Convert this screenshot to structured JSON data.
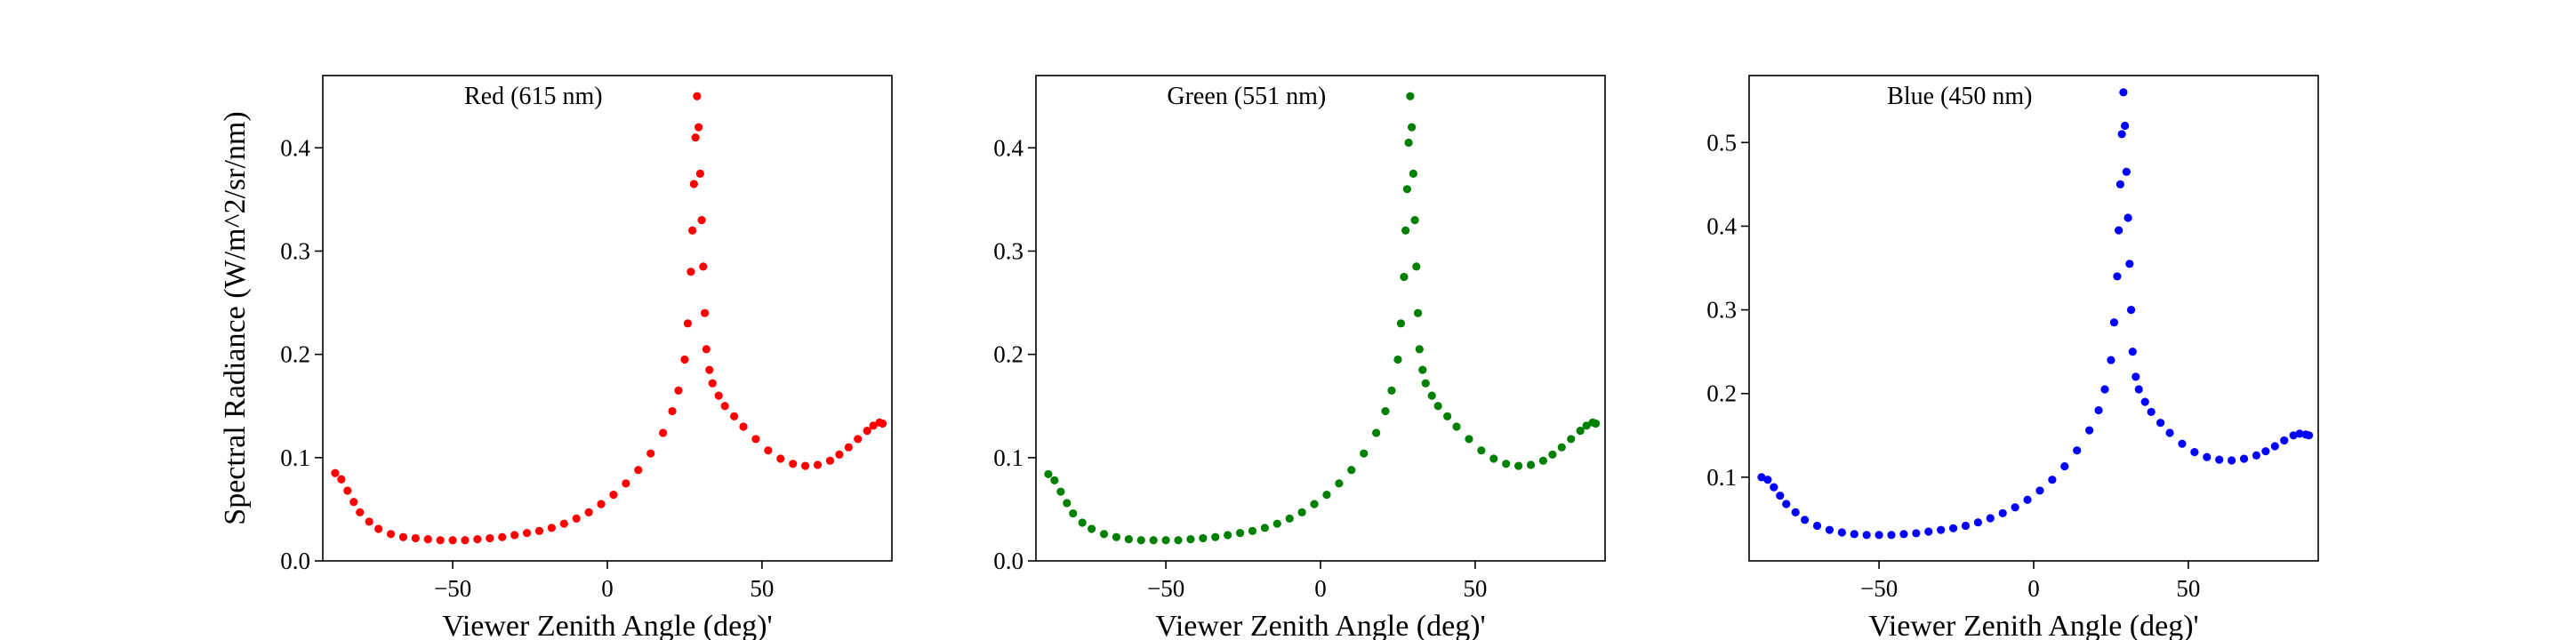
{
  "figure": {
    "ylabel": "Spectral Radiance (W/m^2/sr/nm)"
  },
  "chart_data": [
    {
      "type": "scatter",
      "title": "Red (615 nm)",
      "xlabel": "Viewer Zenith Angle (deg)'",
      "ylabel": "Spectral Radiance (W/m^2/sr/nm)",
      "color": "#ff0000",
      "xlim": [
        -92,
        92
      ],
      "ylim": [
        0.0,
        0.47
      ],
      "xticks": [
        -50,
        0,
        50
      ],
      "yticks": [
        0.0,
        0.1,
        0.2,
        0.3,
        0.4
      ],
      "ytick_labels": [
        "0.0",
        "0.1",
        "0.2",
        "0.3",
        "0.4"
      ],
      "grid": false,
      "series": [
        {
          "x": [
            -88,
            -86,
            -84,
            -82,
            -80,
            -77,
            -74,
            -70,
            -66,
            -62,
            -58,
            -54,
            -50,
            -46,
            -42,
            -38,
            -34,
            -30,
            -26,
            -22,
            -18,
            -14,
            -10,
            -6,
            -2,
            2,
            6,
            10,
            14,
            18,
            21,
            23,
            25,
            26,
            27,
            27.5,
            28,
            28.5,
            29,
            29.5,
            30,
            30.5,
            31,
            31.5,
            32,
            33,
            34,
            36,
            38,
            41,
            44,
            48,
            52,
            56,
            60,
            64,
            68,
            72,
            75,
            78,
            81,
            84,
            86,
            88,
            89
          ],
          "y": [
            0.085,
            0.079,
            0.068,
            0.057,
            0.047,
            0.038,
            0.031,
            0.026,
            0.023,
            0.022,
            0.021,
            0.02,
            0.02,
            0.02,
            0.021,
            0.022,
            0.023,
            0.025,
            0.027,
            0.029,
            0.032,
            0.036,
            0.041,
            0.047,
            0.055,
            0.064,
            0.075,
            0.088,
            0.104,
            0.124,
            0.145,
            0.165,
            0.195,
            0.23,
            0.28,
            0.32,
            0.365,
            0.41,
            0.45,
            0.42,
            0.375,
            0.33,
            0.285,
            0.24,
            0.205,
            0.185,
            0.172,
            0.16,
            0.15,
            0.14,
            0.13,
            0.118,
            0.107,
            0.099,
            0.094,
            0.092,
            0.093,
            0.097,
            0.103,
            0.11,
            0.118,
            0.126,
            0.131,
            0.134,
            0.133
          ]
        }
      ]
    },
    {
      "type": "scatter",
      "title": "Green (551 nm)",
      "xlabel": "Viewer Zenith Angle (deg)'",
      "color": "#008000",
      "xlim": [
        -92,
        92
      ],
      "ylim": [
        0.0,
        0.47
      ],
      "xticks": [
        -50,
        0,
        50
      ],
      "yticks": [
        0.0,
        0.1,
        0.2,
        0.3,
        0.4
      ],
      "ytick_labels": [
        "0.0",
        "0.1",
        "0.2",
        "0.3",
        "0.4"
      ],
      "grid": false,
      "series": [
        {
          "x": [
            -88,
            -86,
            -84,
            -82,
            -80,
            -77,
            -74,
            -70,
            -66,
            -62,
            -58,
            -54,
            -50,
            -46,
            -42,
            -38,
            -34,
            -30,
            -26,
            -22,
            -18,
            -14,
            -10,
            -6,
            -2,
            2,
            6,
            10,
            14,
            18,
            21,
            23,
            25,
            26,
            27,
            27.5,
            28,
            28.5,
            29,
            29.5,
            30,
            30.5,
            31,
            31.5,
            32,
            33,
            34,
            36,
            38,
            41,
            44,
            48,
            52,
            56,
            60,
            64,
            68,
            72,
            75,
            78,
            81,
            84,
            86,
            88,
            89
          ],
          "y": [
            0.084,
            0.078,
            0.067,
            0.056,
            0.046,
            0.037,
            0.031,
            0.026,
            0.023,
            0.021,
            0.02,
            0.02,
            0.02,
            0.02,
            0.021,
            0.022,
            0.023,
            0.025,
            0.027,
            0.029,
            0.032,
            0.036,
            0.041,
            0.047,
            0.055,
            0.064,
            0.075,
            0.088,
            0.104,
            0.124,
            0.145,
            0.165,
            0.195,
            0.23,
            0.275,
            0.32,
            0.36,
            0.405,
            0.45,
            0.42,
            0.375,
            0.33,
            0.285,
            0.24,
            0.205,
            0.185,
            0.172,
            0.16,
            0.15,
            0.14,
            0.13,
            0.118,
            0.107,
            0.099,
            0.094,
            0.092,
            0.093,
            0.097,
            0.103,
            0.11,
            0.118,
            0.126,
            0.131,
            0.134,
            0.133
          ]
        }
      ]
    },
    {
      "type": "scatter",
      "title": "Blue (450 nm)",
      "xlabel": "Viewer Zenith Angle (deg)'",
      "color": "#0000ff",
      "xlim": [
        -92,
        92
      ],
      "ylim": [
        0.0,
        0.58
      ],
      "xticks": [
        -50,
        0,
        50
      ],
      "yticks": [
        0.1,
        0.2,
        0.3,
        0.4,
        0.5
      ],
      "ytick_labels": [
        "0.1",
        "0.2",
        "0.3",
        "0.4",
        "0.5"
      ],
      "grid": false,
      "series": [
        {
          "x": [
            -88,
            -86,
            -84,
            -82,
            -80,
            -77,
            -74,
            -70,
            -66,
            -62,
            -58,
            -54,
            -50,
            -46,
            -42,
            -38,
            -34,
            -30,
            -26,
            -22,
            -18,
            -14,
            -10,
            -6,
            -2,
            2,
            6,
            10,
            14,
            18,
            21,
            23,
            25,
            26,
            27,
            27.5,
            28,
            28.5,
            29,
            29.5,
            30,
            30.5,
            31,
            31.5,
            32,
            33,
            34,
            36,
            38,
            41,
            44,
            48,
            52,
            56,
            60,
            64,
            68,
            72,
            75,
            78,
            81,
            84,
            86,
            88,
            89
          ],
          "y": [
            0.1,
            0.097,
            0.088,
            0.078,
            0.068,
            0.058,
            0.049,
            0.042,
            0.037,
            0.034,
            0.032,
            0.031,
            0.031,
            0.031,
            0.032,
            0.033,
            0.035,
            0.037,
            0.039,
            0.042,
            0.046,
            0.051,
            0.057,
            0.064,
            0.073,
            0.084,
            0.097,
            0.113,
            0.132,
            0.156,
            0.18,
            0.205,
            0.24,
            0.285,
            0.34,
            0.395,
            0.45,
            0.51,
            0.56,
            0.52,
            0.465,
            0.41,
            0.355,
            0.3,
            0.25,
            0.22,
            0.205,
            0.19,
            0.178,
            0.165,
            0.153,
            0.14,
            0.13,
            0.124,
            0.121,
            0.12,
            0.122,
            0.126,
            0.131,
            0.137,
            0.144,
            0.15,
            0.152,
            0.151,
            0.15
          ]
        }
      ]
    }
  ]
}
